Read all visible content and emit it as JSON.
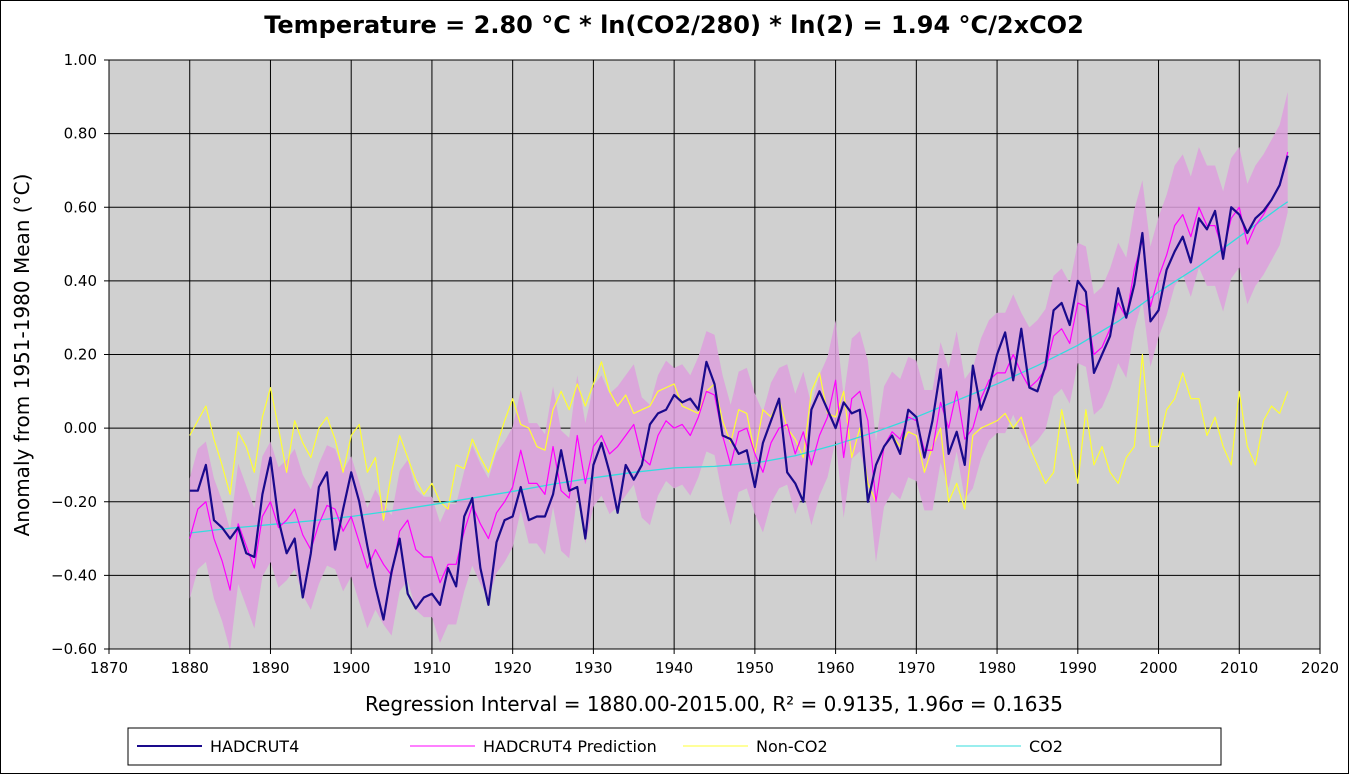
{
  "chart_data": {
    "type": "line",
    "title": "Temperature = 2.80 °C * ln(CO2/280) * ln(2) = 1.94 °C/2xCO2",
    "xlabel": "Regression Interval = 1880.00-2015.00, R² = 0.9135, 1.96σ = 0.1635",
    "ylabel": "Anomaly from 1951-1980 Mean (°C)",
    "xlim": [
      1870,
      2020
    ],
    "ylim": [
      -0.6,
      1.0
    ],
    "x_ticks": [
      1870,
      1880,
      1890,
      1900,
      1910,
      1920,
      1930,
      1940,
      1950,
      1960,
      1970,
      1980,
      1990,
      2000,
      2010,
      2020
    ],
    "x_tick_labels": [
      "1870",
      "1880",
      "1890",
      "1900",
      "1910",
      "1920",
      "1930",
      "1940",
      "1950",
      "1960",
      "1970",
      "1980",
      "1990",
      "2000",
      "2010",
      "2020"
    ],
    "y_ticks": [
      -0.6,
      -0.4,
      -0.2,
      0.0,
      0.2,
      0.4,
      0.6,
      0.8,
      1.0
    ],
    "y_tick_labels": [
      "−0.60",
      "−0.40",
      "−0.20",
      "0.00",
      "0.20",
      "0.40",
      "0.60",
      "0.80",
      "1.00"
    ],
    "grid": true,
    "confidence_band_halfwidth": 0.1635,
    "colors": {
      "plot_background": "#d0d0d0",
      "band": "#dda0dd",
      "hadcrut4": "#1a0a8c",
      "prediction": "#ff00ff",
      "non_co2": "#ffff33",
      "co2": "#33dddd"
    },
    "series": [
      {
        "name": "HADCRUT4",
        "key": "hadcrut4",
        "x": [
          1880,
          1881,
          1882,
          1883,
          1884,
          1885,
          1886,
          1887,
          1888,
          1889,
          1890,
          1891,
          1892,
          1893,
          1894,
          1895,
          1896,
          1897,
          1898,
          1899,
          1900,
          1901,
          1902,
          1903,
          1904,
          1905,
          1906,
          1907,
          1908,
          1909,
          1910,
          1911,
          1912,
          1913,
          1914,
          1915,
          1916,
          1917,
          1918,
          1919,
          1920,
          1921,
          1922,
          1923,
          1924,
          1925,
          1926,
          1927,
          1928,
          1929,
          1930,
          1931,
          1932,
          1933,
          1934,
          1935,
          1936,
          1937,
          1938,
          1939,
          1940,
          1941,
          1942,
          1943,
          1944,
          1945,
          1946,
          1947,
          1948,
          1949,
          1950,
          1951,
          1952,
          1953,
          1954,
          1955,
          1956,
          1957,
          1958,
          1959,
          1960,
          1961,
          1962,
          1963,
          1964,
          1965,
          1966,
          1967,
          1968,
          1969,
          1970,
          1971,
          1972,
          1973,
          1974,
          1975,
          1976,
          1977,
          1978,
          1979,
          1980,
          1981,
          1982,
          1983,
          1984,
          1985,
          1986,
          1987,
          1988,
          1989,
          1990,
          1991,
          1992,
          1993,
          1994,
          1995,
          1996,
          1997,
          1998,
          1999,
          2000,
          2001,
          2002,
          2003,
          2004,
          2005,
          2006,
          2007,
          2008,
          2009,
          2010,
          2011,
          2012,
          2013,
          2014,
          2015,
          2016
        ],
        "values": [
          -0.17,
          -0.17,
          -0.1,
          -0.25,
          -0.27,
          -0.3,
          -0.27,
          -0.34,
          -0.35,
          -0.18,
          -0.08,
          -0.25,
          -0.34,
          -0.3,
          -0.46,
          -0.34,
          -0.16,
          -0.12,
          -0.33,
          -0.22,
          -0.12,
          -0.2,
          -0.32,
          -0.43,
          -0.52,
          -0.39,
          -0.3,
          -0.45,
          -0.49,
          -0.46,
          -0.45,
          -0.48,
          -0.38,
          -0.43,
          -0.24,
          -0.19,
          -0.38,
          -0.48,
          -0.31,
          -0.25,
          -0.24,
          -0.16,
          -0.25,
          -0.24,
          -0.24,
          -0.18,
          -0.06,
          -0.17,
          -0.16,
          -0.3,
          -0.1,
          -0.04,
          -0.12,
          -0.23,
          -0.1,
          -0.14,
          -0.1,
          0.01,
          0.04,
          0.05,
          0.09,
          0.07,
          0.08,
          0.05,
          0.18,
          0.12,
          -0.02,
          -0.03,
          -0.07,
          -0.06,
          -0.16,
          -0.04,
          0.02,
          0.08,
          -0.12,
          -0.15,
          -0.2,
          0.05,
          0.1,
          0.05,
          0.0,
          0.07,
          0.04,
          0.05,
          -0.2,
          -0.1,
          -0.05,
          -0.02,
          -0.07,
          0.05,
          0.03,
          -0.08,
          0.02,
          0.16,
          -0.07,
          -0.01,
          -0.1,
          0.17,
          0.05,
          0.11,
          0.2,
          0.26,
          0.13,
          0.27,
          0.11,
          0.1,
          0.17,
          0.32,
          0.34,
          0.28,
          0.4,
          0.37,
          0.15,
          0.2,
          0.25,
          0.38,
          0.3,
          0.39,
          0.53,
          0.29,
          0.32,
          0.43,
          0.48,
          0.52,
          0.45,
          0.57,
          0.54,
          0.59,
          0.46,
          0.6,
          0.58,
          0.53,
          0.57,
          0.59,
          0.62,
          0.66,
          0.74
        ]
      },
      {
        "name": "HADCRUT4 Prediction",
        "key": "prediction",
        "x": [
          1880,
          1881,
          1882,
          1883,
          1884,
          1885,
          1886,
          1887,
          1888,
          1889,
          1890,
          1891,
          1892,
          1893,
          1894,
          1895,
          1896,
          1897,
          1898,
          1899,
          1900,
          1901,
          1902,
          1903,
          1904,
          1905,
          1906,
          1907,
          1908,
          1909,
          1910,
          1911,
          1912,
          1913,
          1914,
          1915,
          1916,
          1917,
          1918,
          1919,
          1920,
          1921,
          1922,
          1923,
          1924,
          1925,
          1926,
          1927,
          1928,
          1929,
          1930,
          1931,
          1932,
          1933,
          1934,
          1935,
          1936,
          1937,
          1938,
          1939,
          1940,
          1941,
          1942,
          1943,
          1944,
          1945,
          1946,
          1947,
          1948,
          1949,
          1950,
          1951,
          1952,
          1953,
          1954,
          1955,
          1956,
          1957,
          1958,
          1959,
          1960,
          1961,
          1962,
          1963,
          1964,
          1965,
          1966,
          1967,
          1968,
          1969,
          1970,
          1971,
          1972,
          1973,
          1974,
          1975,
          1976,
          1977,
          1978,
          1979,
          1980,
          1981,
          1982,
          1983,
          1984,
          1985,
          1986,
          1987,
          1988,
          1989,
          1990,
          1991,
          1992,
          1993,
          1994,
          1995,
          1996,
          1997,
          1998,
          1999,
          2000,
          2001,
          2002,
          2003,
          2004,
          2005,
          2006,
          2007,
          2008,
          2009,
          2010,
          2011,
          2012,
          2013,
          2014,
          2015,
          2016
        ],
        "values": [
          -0.3,
          -0.22,
          -0.2,
          -0.3,
          -0.36,
          -0.44,
          -0.26,
          -0.32,
          -0.38,
          -0.24,
          -0.2,
          -0.27,
          -0.25,
          -0.22,
          -0.29,
          -0.33,
          -0.26,
          -0.21,
          -0.22,
          -0.28,
          -0.24,
          -0.31,
          -0.38,
          -0.33,
          -0.37,
          -0.4,
          -0.28,
          -0.25,
          -0.33,
          -0.35,
          -0.35,
          -0.42,
          -0.37,
          -0.37,
          -0.28,
          -0.21,
          -0.26,
          -0.3,
          -0.23,
          -0.2,
          -0.16,
          -0.06,
          -0.15,
          -0.15,
          -0.18,
          -0.05,
          -0.17,
          -0.19,
          -0.02,
          -0.15,
          -0.05,
          -0.02,
          -0.07,
          -0.05,
          -0.02,
          0.01,
          -0.08,
          -0.1,
          -0.02,
          0.02,
          0.0,
          0.01,
          -0.02,
          0.03,
          0.1,
          0.09,
          -0.02,
          -0.1,
          -0.01,
          0.0,
          -0.07,
          -0.12,
          -0.04,
          0.0,
          0.01,
          -0.07,
          -0.01,
          -0.1,
          -0.02,
          0.03,
          0.13,
          -0.08,
          0.08,
          0.1,
          0.02,
          -0.2,
          -0.05,
          -0.01,
          -0.03,
          0.03,
          0.02,
          -0.06,
          -0.06,
          0.07,
          0.0,
          0.1,
          -0.03,
          0.0,
          0.08,
          0.13,
          0.15,
          0.15,
          0.2,
          0.15,
          0.11,
          0.13,
          0.16,
          0.25,
          0.27,
          0.23,
          0.34,
          0.33,
          0.2,
          0.22,
          0.27,
          0.34,
          0.3,
          0.43,
          0.51,
          0.33,
          0.41,
          0.47,
          0.55,
          0.58,
          0.52,
          0.6,
          0.55,
          0.55,
          0.48,
          0.57,
          0.6,
          0.5,
          0.55,
          0.58,
          0.62,
          0.66,
          0.75
        ]
      },
      {
        "name": "Non-CO2",
        "key": "non_co2",
        "x": [
          1880,
          1881,
          1882,
          1883,
          1884,
          1885,
          1886,
          1887,
          1888,
          1889,
          1890,
          1891,
          1892,
          1893,
          1894,
          1895,
          1896,
          1897,
          1898,
          1899,
          1900,
          1901,
          1902,
          1903,
          1904,
          1905,
          1906,
          1907,
          1908,
          1909,
          1910,
          1911,
          1912,
          1913,
          1914,
          1915,
          1916,
          1917,
          1918,
          1919,
          1920,
          1921,
          1922,
          1923,
          1924,
          1925,
          1926,
          1927,
          1928,
          1929,
          1930,
          1931,
          1932,
          1933,
          1934,
          1935,
          1936,
          1937,
          1938,
          1939,
          1940,
          1941,
          1942,
          1943,
          1944,
          1945,
          1946,
          1947,
          1948,
          1949,
          1950,
          1951,
          1952,
          1953,
          1954,
          1955,
          1956,
          1957,
          1958,
          1959,
          1960,
          1961,
          1962,
          1963,
          1964,
          1965,
          1966,
          1967,
          1968,
          1969,
          1970,
          1971,
          1972,
          1973,
          1974,
          1975,
          1976,
          1977,
          1978,
          1979,
          1980,
          1981,
          1982,
          1983,
          1984,
          1985,
          1986,
          1987,
          1988,
          1989,
          1990,
          1991,
          1992,
          1993,
          1994,
          1995,
          1996,
          1997,
          1998,
          1999,
          2000,
          2001,
          2002,
          2003,
          2004,
          2005,
          2006,
          2007,
          2008,
          2009,
          2010,
          2011,
          2012,
          2013,
          2014,
          2015,
          2016
        ],
        "values": [
          -0.02,
          0.02,
          0.06,
          -0.03,
          -0.1,
          -0.18,
          -0.01,
          -0.05,
          -0.12,
          0.03,
          0.11,
          0.0,
          -0.12,
          0.02,
          -0.04,
          -0.08,
          0.0,
          0.03,
          -0.03,
          -0.12,
          -0.02,
          0.01,
          -0.12,
          -0.08,
          -0.25,
          -0.12,
          -0.02,
          -0.08,
          -0.14,
          -0.18,
          -0.15,
          -0.2,
          -0.22,
          -0.1,
          -0.11,
          -0.03,
          -0.08,
          -0.12,
          -0.05,
          0.02,
          0.08,
          0.01,
          0.0,
          -0.05,
          -0.06,
          0.05,
          0.1,
          0.05,
          0.12,
          0.06,
          0.12,
          0.18,
          0.1,
          0.06,
          0.09,
          0.04,
          0.05,
          0.06,
          0.1,
          0.11,
          0.12,
          0.06,
          0.05,
          0.04,
          0.1,
          0.12,
          0.02,
          -0.04,
          0.05,
          0.04,
          -0.07,
          0.05,
          0.03,
          0.08,
          0.0,
          -0.03,
          -0.08,
          0.1,
          0.15,
          0.04,
          0.03,
          0.1,
          -0.08,
          0.0,
          -0.15,
          -0.2,
          -0.05,
          -0.02,
          -0.05,
          -0.01,
          -0.02,
          -0.12,
          -0.05,
          0.0,
          -0.2,
          -0.15,
          -0.22,
          -0.02,
          0.0,
          0.01,
          0.02,
          0.04,
          0.0,
          0.03,
          -0.05,
          -0.1,
          -0.15,
          -0.12,
          0.05,
          -0.05,
          -0.15,
          0.05,
          -0.1,
          -0.05,
          -0.12,
          -0.15,
          -0.08,
          -0.05,
          0.2,
          -0.05,
          -0.05,
          0.05,
          0.08,
          0.15,
          0.08,
          0.08,
          -0.02,
          0.03,
          -0.05,
          -0.1,
          0.1,
          -0.05,
          -0.1,
          0.02,
          0.06,
          0.04,
          0.1
        ]
      },
      {
        "name": "CO2",
        "key": "co2",
        "x": [
          1880,
          1885,
          1890,
          1895,
          1900,
          1905,
          1910,
          1915,
          1920,
          1925,
          1930,
          1935,
          1940,
          1945,
          1950,
          1955,
          1960,
          1965,
          1970,
          1975,
          1980,
          1985,
          1990,
          1995,
          2000,
          2005,
          2010,
          2015,
          2016
        ],
        "values": [
          -0.285,
          -0.272,
          -0.262,
          -0.252,
          -0.24,
          -0.225,
          -0.208,
          -0.19,
          -0.172,
          -0.152,
          -0.135,
          -0.12,
          -0.108,
          -0.104,
          -0.095,
          -0.075,
          -0.045,
          -0.01,
          0.03,
          0.075,
          0.12,
          0.17,
          0.225,
          0.29,
          0.37,
          0.44,
          0.52,
          0.6,
          0.615
        ]
      }
    ],
    "legend": {
      "position": "bottom",
      "entries": [
        "HADCRUT4",
        "HADCRUT4 Prediction",
        "Non-CO2",
        "CO2"
      ]
    }
  }
}
